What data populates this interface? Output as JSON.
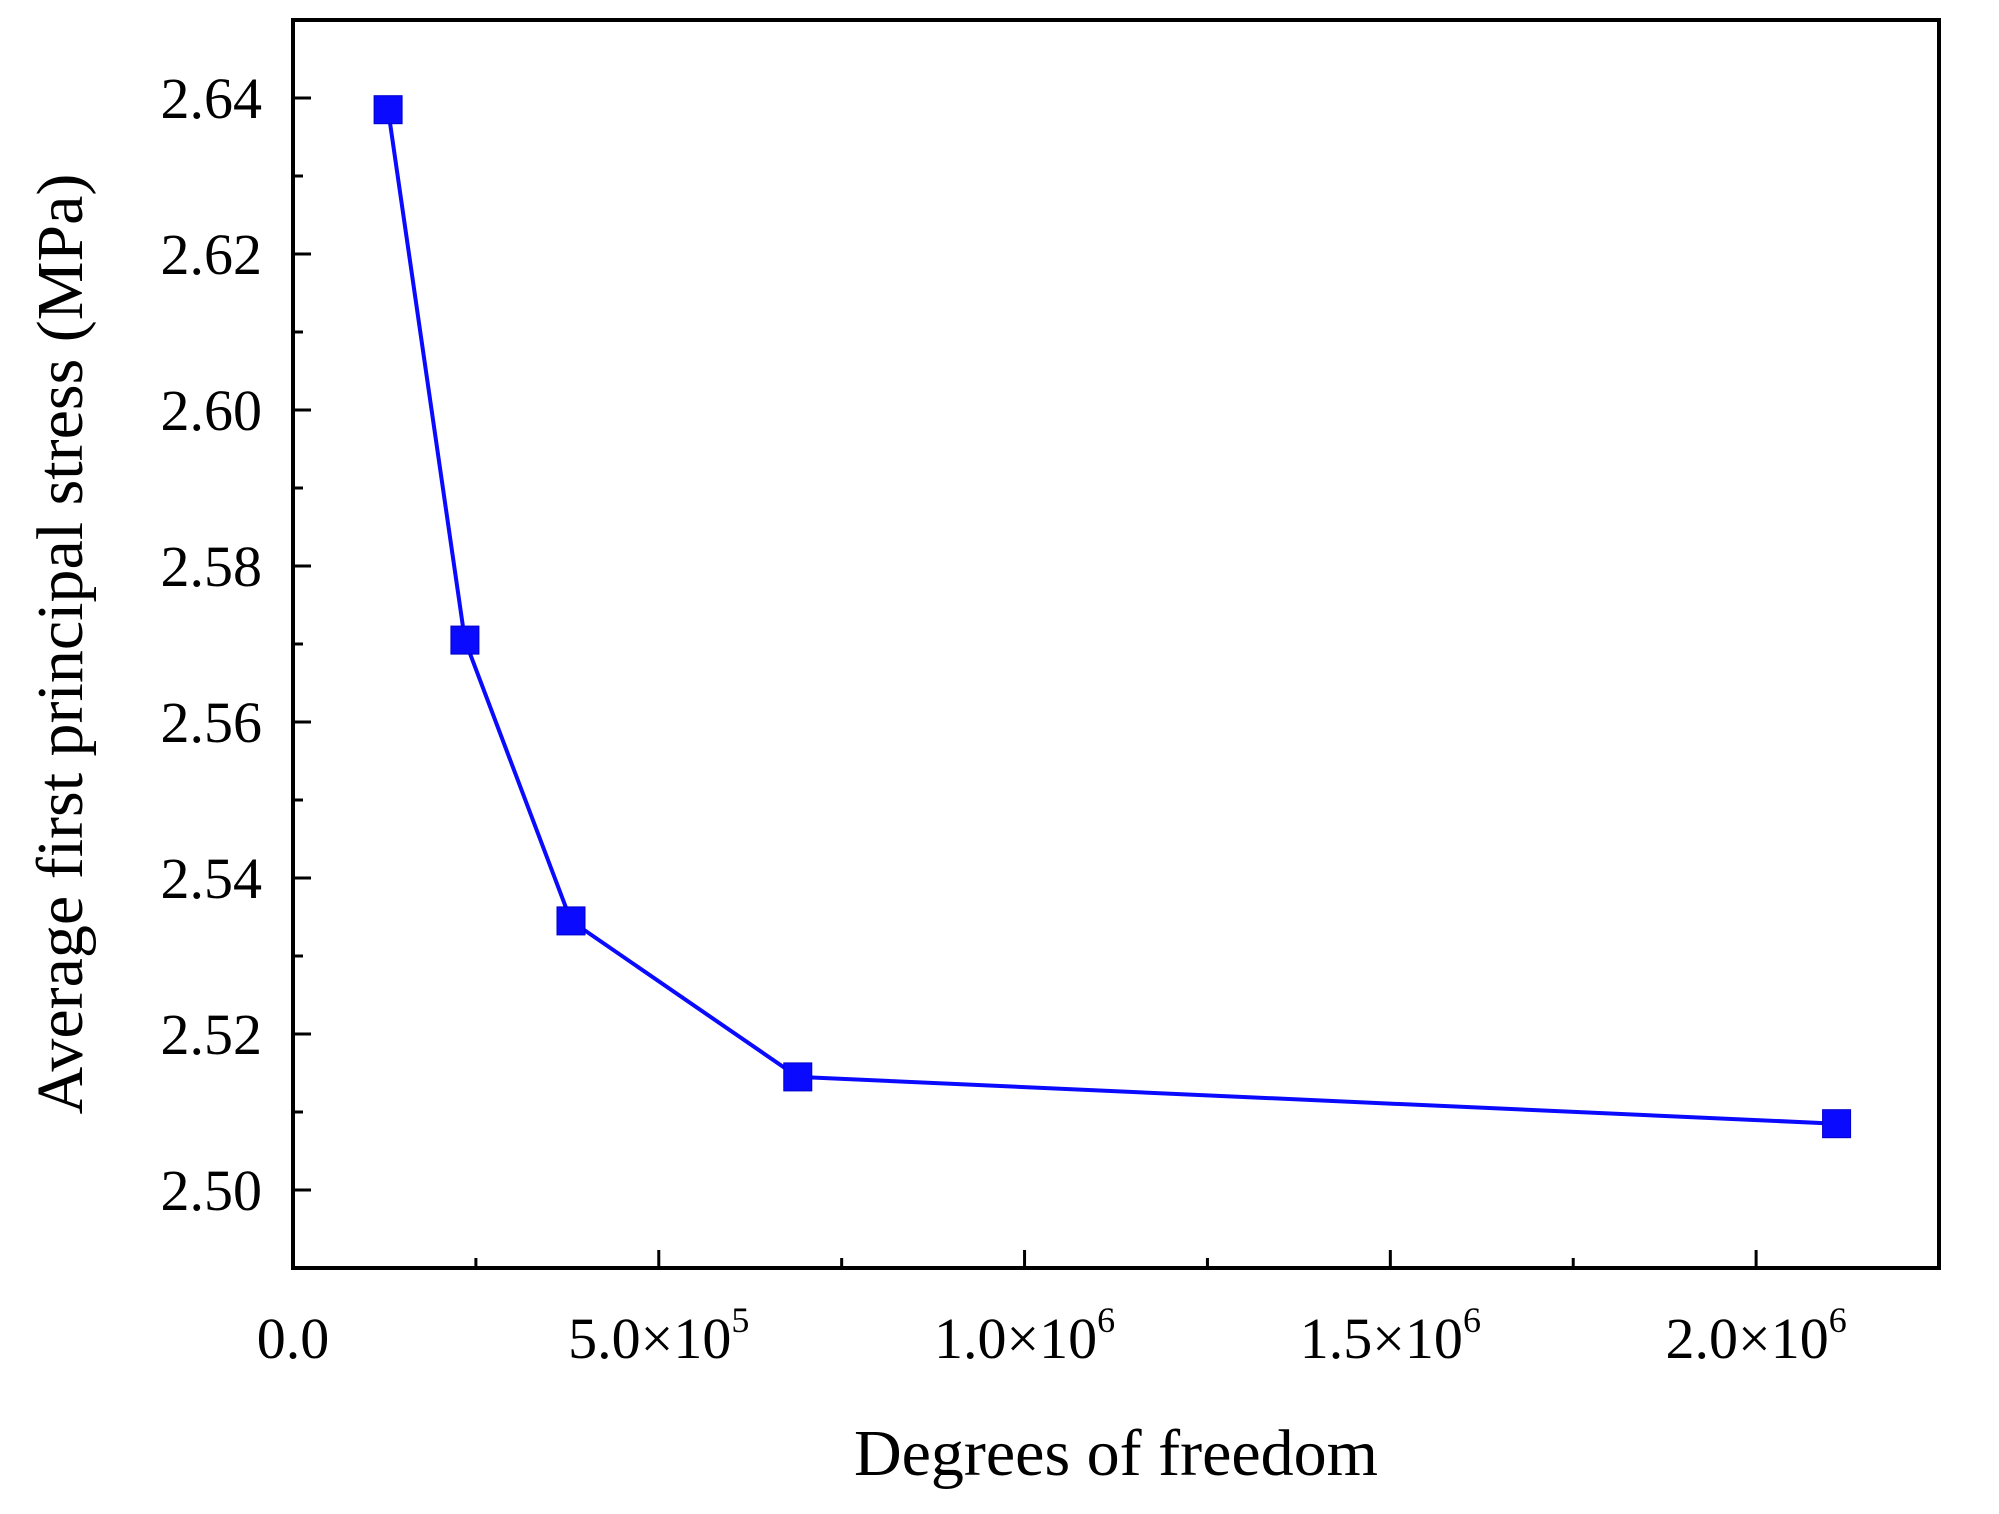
{
  "chart_data": {
    "type": "line",
    "title": "",
    "xlabel": "Degrees of freedom",
    "ylabel": "Average first principal stress (MPa)",
    "xlim": [
      0,
      2250000
    ],
    "ylim": [
      2.49,
      2.65
    ],
    "grid": false,
    "legend": "none",
    "x_ticks": [
      {
        "value": 0,
        "mantissa": "0.0",
        "exponent": ""
      },
      {
        "value": 500000,
        "mantissa": "5.0×10",
        "exponent": "5"
      },
      {
        "value": 1000000,
        "mantissa": "1.0×10",
        "exponent": "6"
      },
      {
        "value": 1500000,
        "mantissa": "1.5×10",
        "exponent": "6"
      },
      {
        "value": 2000000,
        "mantissa": "2.0×10",
        "exponent": "6"
      }
    ],
    "y_ticks": [
      {
        "value": 2.5,
        "label": "2.50"
      },
      {
        "value": 2.52,
        "label": "2.52"
      },
      {
        "value": 2.54,
        "label": "2.54"
      },
      {
        "value": 2.56,
        "label": "2.56"
      },
      {
        "value": 2.58,
        "label": "2.58"
      },
      {
        "value": 2.6,
        "label": "2.60"
      },
      {
        "value": 2.62,
        "label": "2.62"
      },
      {
        "value": 2.64,
        "label": "2.64"
      }
    ],
    "series": [
      {
        "color": "#0a0aff",
        "marker": "square",
        "x": [
          130000,
          235000,
          380000,
          690000,
          2110000
        ],
        "y": [
          2.6385,
          2.5705,
          2.5345,
          2.5145,
          2.5085
        ]
      }
    ]
  }
}
